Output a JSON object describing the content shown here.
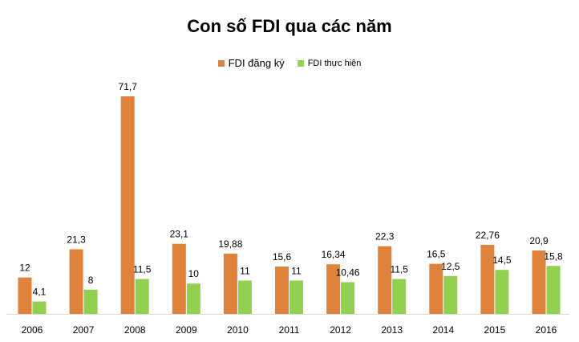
{
  "chart_data": {
    "type": "bar",
    "title": "Con số FDI qua các năm",
    "categories": [
      "2006",
      "2007",
      "2008",
      "2009",
      "2010",
      "2011",
      "2012",
      "2013",
      "2014",
      "2015",
      "2016"
    ],
    "series": [
      {
        "name": "FDI đăng ký",
        "color": "#E0833A",
        "values": [
          12,
          21.3,
          71.7,
          23.1,
          19.88,
          15.6,
          16.34,
          22.3,
          16.5,
          22.76,
          20.9
        ],
        "labels": [
          "12",
          "21,3",
          "71,7",
          "23,1",
          "19,88",
          "15,6",
          "16,34",
          "22,3",
          "16,5",
          "22,76",
          "20,9"
        ]
      },
      {
        "name": "FDI thực hiện",
        "color": "#92D050",
        "values": [
          4.1,
          8,
          11.5,
          10,
          11,
          11,
          10.46,
          11.5,
          12.5,
          14.5,
          15.8
        ],
        "labels": [
          "4,1",
          "8",
          "11,5",
          "10",
          "11",
          "11",
          "10,46",
          "11,5",
          "12,5",
          "14,5",
          "15,8"
        ]
      }
    ],
    "ylim": [
      0,
      71.7
    ],
    "xlabel": "",
    "ylabel": "",
    "grid": false,
    "legend_position": "top-center"
  }
}
